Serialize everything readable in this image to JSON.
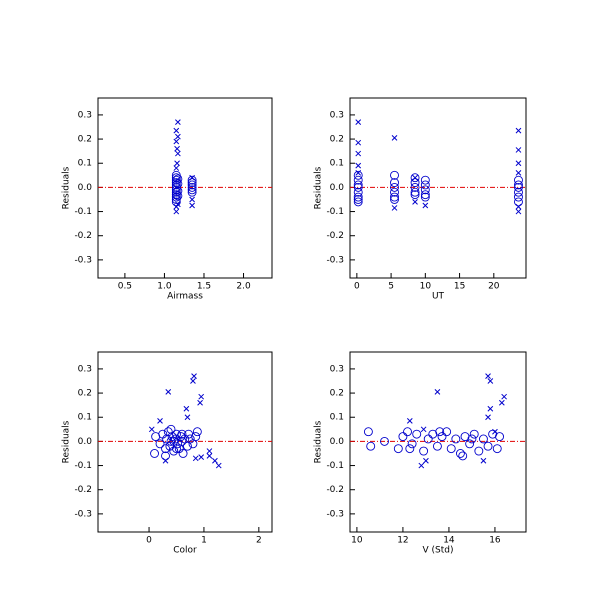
{
  "chart_data": [
    {
      "type": "scatter",
      "xlabel": "Airmass",
      "ylabel": "Residuals",
      "xlim": [
        0.16,
        2.36
      ],
      "xticks": [
        0.5,
        {
          "value": 1,
          "label": "1.0"
        },
        1.5,
        {
          "value": 2,
          "label": "2.0"
        }
      ],
      "ylim": [
        -0.375,
        0.37
      ],
      "yticks": [
        -0.3,
        -0.2,
        -0.1,
        {
          "value": 0,
          "label": "0.0"
        },
        0.1,
        0.2,
        0.3
      ],
      "reference_line": {
        "y": 0,
        "color": "#e00000"
      },
      "series": [
        {
          "marker": "circle",
          "color": "#0000cc",
          "x": [
            1.15,
            1.15,
            1.15,
            1.15,
            1.15,
            1.15,
            1.15,
            1.15,
            1.15,
            1.15,
            1.15,
            1.15,
            1.17,
            1.17,
            1.17,
            1.17,
            1.35,
            1.35,
            1.35,
            1.35,
            1.35,
            1.35
          ],
          "values": [
            0.05,
            0.04,
            0.03,
            0.02,
            0.01,
            0,
            -0.01,
            -0.02,
            -0.03,
            -0.04,
            -0.05,
            -0.06,
            0.035,
            -0.015,
            0.015,
            -0.035,
            0.03,
            0.01,
            0,
            -0.01,
            -0.02,
            0.02
          ]
        },
        {
          "marker": "x",
          "color": "#0000cc",
          "x": [
            1.17,
            1.15,
            1.17,
            1.15,
            1.16,
            1.17,
            1.16,
            1.15,
            1.15,
            1.15,
            1.17,
            1.35,
            1.35,
            1.35
          ],
          "values": [
            0.27,
            0.235,
            0.21,
            0.19,
            0.16,
            0.14,
            0.1,
            0.08,
            -0.08,
            -0.1,
            -0.07,
            -0.075,
            0.04,
            -0.05
          ]
        }
      ]
    },
    {
      "type": "scatter",
      "xlabel": "UT",
      "ylabel": "Residuals",
      "xlim": [
        -1,
        24.7
      ],
      "xticks": [
        0,
        5,
        10,
        15,
        20
      ],
      "ylim": [
        -0.375,
        0.37
      ],
      "yticks": [
        -0.3,
        -0.2,
        -0.1,
        {
          "value": 0,
          "label": "0.0"
        },
        0.1,
        0.2,
        0.3
      ],
      "reference_line": {
        "y": 0,
        "color": "#e00000"
      },
      "series": [
        {
          "marker": "circle",
          "color": "#0000cc",
          "x": [
            0.2,
            0.2,
            0.2,
            0.2,
            0.2,
            0.2,
            0.2,
            0.2,
            5.5,
            5.5,
            5.5,
            5.5,
            5.5,
            5.5,
            8.5,
            8.5,
            8.5,
            8.5,
            8.5,
            10,
            10,
            10,
            10,
            10,
            23.6,
            23.6,
            23.6,
            23.6,
            23.6,
            23.6
          ],
          "values": [
            0.05,
            0.03,
            0.01,
            0,
            -0.02,
            -0.04,
            -0.05,
            -0.06,
            0.05,
            0.02,
            0,
            -0.02,
            -0.04,
            -0.05,
            0.04,
            0.02,
            0,
            -0.02,
            -0.03,
            0.03,
            0.01,
            -0.01,
            -0.03,
            -0.04,
            0.03,
            0.01,
            0,
            -0.02,
            -0.04,
            -0.06
          ]
        },
        {
          "marker": "x",
          "color": "#0000cc",
          "x": [
            0.2,
            0.2,
            0.2,
            0.2,
            0.2,
            5.5,
            5.5,
            8.5,
            8.5,
            10,
            23.6,
            23.6,
            23.6,
            23.6,
            23.6,
            23.6
          ],
          "values": [
            0.27,
            0.185,
            0.14,
            0.09,
            0.06,
            0.205,
            -0.085,
            -0.06,
            0.04,
            -0.075,
            0.235,
            0.155,
            0.1,
            0.06,
            -0.08,
            -0.1
          ]
        }
      ]
    },
    {
      "type": "scatter",
      "xlabel": "Color",
      "ylabel": "Residuals",
      "xlim": [
        -0.93,
        2.24
      ],
      "xticks": [
        0,
        1,
        2
      ],
      "ylim": [
        -0.375,
        0.37
      ],
      "yticks": [
        -0.3,
        -0.2,
        -0.1,
        {
          "value": 0,
          "label": "0.0"
        },
        0.1,
        0.2,
        0.3
      ],
      "reference_line": {
        "y": 0,
        "color": "#e00000"
      },
      "series": [
        {
          "marker": "circle",
          "color": "#0000cc",
          "x": [
            0.1,
            0.12,
            0.2,
            0.25,
            0.3,
            0.32,
            0.35,
            0.38,
            0.4,
            0.42,
            0.45,
            0.48,
            0.5,
            0.52,
            0.55,
            0.58,
            0.6,
            0.62,
            0.65,
            0.7,
            0.72,
            0.75,
            0.8,
            0.85,
            0.88,
            0.3,
            0.4,
            0.5,
            0.6,
            0.45
          ],
          "values": [
            -0.05,
            0.02,
            -0.01,
            0.03,
            -0.03,
            0.01,
            0.04,
            -0.02,
            0,
            0.02,
            -0.04,
            0.01,
            0.03,
            -0.01,
            -0.03,
            0.02,
            0,
            -0.05,
            0.01,
            -0.02,
            0.03,
            0.01,
            -0.01,
            0.02,
            0.04,
            -0.06,
            0.05,
            -0.03,
            0.03,
            0
          ]
        },
        {
          "marker": "x",
          "color": "#0000cc",
          "x": [
            0.35,
            0.82,
            0.8,
            0.95,
            0.93,
            0.68,
            0.7,
            0.2,
            1.1,
            1.1,
            1.2,
            1.27,
            0.05,
            0.85,
            0.95,
            0.3
          ],
          "values": [
            0.205,
            0.27,
            0.25,
            0.185,
            0.16,
            0.135,
            0.1,
            0.085,
            -0.04,
            -0.06,
            -0.08,
            -0.1,
            0.05,
            -0.07,
            -0.065,
            -0.08
          ]
        }
      ]
    },
    {
      "type": "scatter",
      "xlabel": "V (Std)",
      "ylabel": "Residuals",
      "xlim": [
        9.7,
        17.35
      ],
      "xticks": [
        10,
        12,
        14,
        16
      ],
      "ylim": [
        -0.375,
        0.37
      ],
      "yticks": [
        -0.3,
        -0.2,
        -0.1,
        {
          "value": 0,
          "label": "0.0"
        },
        0.1,
        0.2,
        0.3
      ],
      "reference_line": {
        "y": 0,
        "color": "#e00000"
      },
      "series": [
        {
          "marker": "circle",
          "color": "#0000cc",
          "x": [
            10.5,
            10.6,
            11.2,
            11.8,
            12,
            12.2,
            12.4,
            12.6,
            12.9,
            13.1,
            13.3,
            13.5,
            13.7,
            13.9,
            14.1,
            14.3,
            14.5,
            14.7,
            14.9,
            15.1,
            15.3,
            15.5,
            15.7,
            15.9,
            16.1,
            16.2,
            12.3,
            13.6,
            14.6,
            15.0
          ],
          "values": [
            0.04,
            -0.02,
            0,
            -0.03,
            0.02,
            0.04,
            -0.01,
            0.03,
            -0.04,
            0.01,
            0.03,
            -0.02,
            0.02,
            0.04,
            -0.03,
            0.01,
            -0.05,
            0.02,
            -0.01,
            0.03,
            -0.04,
            0.01,
            -0.02,
            0.03,
            -0.03,
            0.02,
            -0.03,
            0.04,
            -0.06,
            0.01
          ]
        },
        {
          "marker": "x",
          "color": "#0000cc",
          "x": [
            13.5,
            15.7,
            15.8,
            16.4,
            16.3,
            15.8,
            15.7,
            12.3,
            12.8,
            13,
            15.5,
            16,
            12.9
          ],
          "values": [
            0.205,
            0.27,
            0.25,
            0.185,
            0.16,
            0.135,
            0.1,
            0.085,
            -0.1,
            -0.08,
            -0.08,
            0.04,
            0.05
          ]
        }
      ]
    }
  ]
}
